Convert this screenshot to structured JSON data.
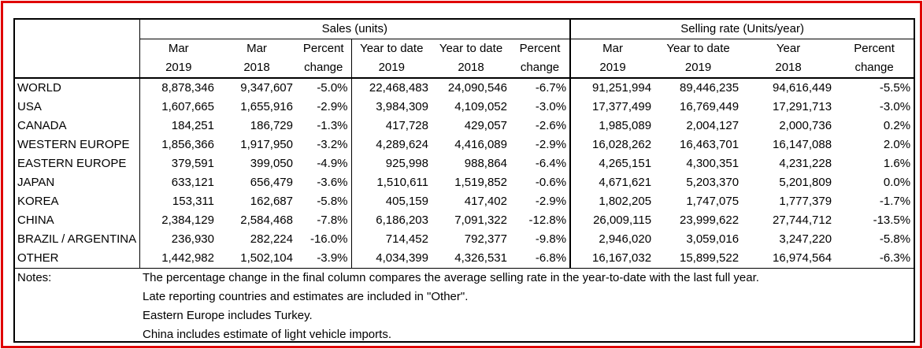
{
  "groups": {
    "sales": "Sales (units)",
    "selling_rate": "Selling rate (Units/year)"
  },
  "columns": [
    [
      "Mar",
      "2019"
    ],
    [
      "Mar",
      "2018"
    ],
    [
      "Percent",
      "change"
    ],
    [
      "Year to date",
      "2019"
    ],
    [
      "Year to date",
      "2018"
    ],
    [
      "Percent",
      "change"
    ],
    [
      "Mar",
      "2019"
    ],
    [
      "Year to date",
      "2019"
    ],
    [
      "Year",
      "2018"
    ],
    [
      "Percent",
      "change"
    ]
  ],
  "rows": [
    {
      "region": "WORLD",
      "values": [
        "8,878,346",
        "9,347,607",
        "-5.0%",
        "22,468,483",
        "24,090,546",
        "-6.7%",
        "91,251,994",
        "89,446,235",
        "94,616,449",
        "-5.5%"
      ]
    },
    {
      "region": "USA",
      "values": [
        "1,607,665",
        "1,655,916",
        "-2.9%",
        "3,984,309",
        "4,109,052",
        "-3.0%",
        "17,377,499",
        "16,769,449",
        "17,291,713",
        "-3.0%"
      ]
    },
    {
      "region": "CANADA",
      "values": [
        "184,251",
        "186,729",
        "-1.3%",
        "417,728",
        "429,057",
        "-2.6%",
        "1,985,089",
        "2,004,127",
        "2,000,736",
        "0.2%"
      ]
    },
    {
      "region": "WESTERN EUROPE",
      "values": [
        "1,856,366",
        "1,917,950",
        "-3.2%",
        "4,289,624",
        "4,416,089",
        "-2.9%",
        "16,028,262",
        "16,463,701",
        "16,147,088",
        "2.0%"
      ]
    },
    {
      "region": "EASTERN EUROPE",
      "values": [
        "379,591",
        "399,050",
        "-4.9%",
        "925,998",
        "988,864",
        "-6.4%",
        "4,265,151",
        "4,300,351",
        "4,231,228",
        "1.6%"
      ]
    },
    {
      "region": "JAPAN",
      "values": [
        "633,121",
        "656,479",
        "-3.6%",
        "1,510,611",
        "1,519,852",
        "-0.6%",
        "4,671,621",
        "5,203,370",
        "5,201,809",
        "0.0%"
      ]
    },
    {
      "region": "KOREA",
      "values": [
        "153,311",
        "162,687",
        "-5.8%",
        "405,159",
        "417,402",
        "-2.9%",
        "1,802,205",
        "1,747,075",
        "1,777,379",
        "-1.7%"
      ]
    },
    {
      "region": "CHINA",
      "values": [
        "2,384,129",
        "2,584,468",
        "-7.8%",
        "6,186,203",
        "7,091,322",
        "-12.8%",
        "26,009,115",
        "23,999,622",
        "27,744,712",
        "-13.5%"
      ]
    },
    {
      "region": "BRAZIL / ARGENTINA",
      "values": [
        "236,930",
        "282,224",
        "-16.0%",
        "714,452",
        "792,377",
        "-9.8%",
        "2,946,020",
        "3,059,016",
        "3,247,220",
        "-5.8%"
      ]
    },
    {
      "region": "OTHER",
      "values": [
        "1,442,982",
        "1,502,104",
        "-3.9%",
        "4,034,399",
        "4,326,531",
        "-6.8%",
        "16,167,032",
        "15,899,522",
        "16,974,564",
        "-6.3%"
      ]
    }
  ],
  "notes": {
    "label": "Notes:",
    "lines": [
      "The percentage change in the final column compares the average selling rate in the year-to-date with the last full year.",
      "Late reporting countries and estimates are included in \"Other\".",
      "Eastern Europe includes Turkey.",
      "China includes estimate of light vehicle imports."
    ]
  }
}
